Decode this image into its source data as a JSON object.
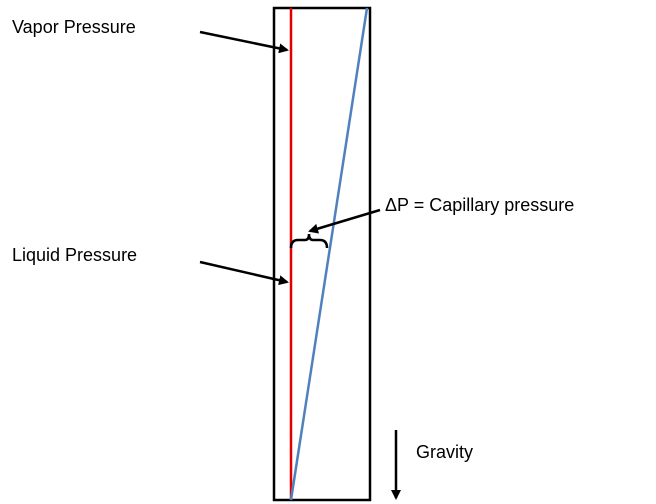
{
  "labels": {
    "vapor": "Vapor Pressure",
    "liquid": "Liquid Pressure",
    "delta": "ΔP = Capillary pressure",
    "gravity": "Gravity"
  }
}
